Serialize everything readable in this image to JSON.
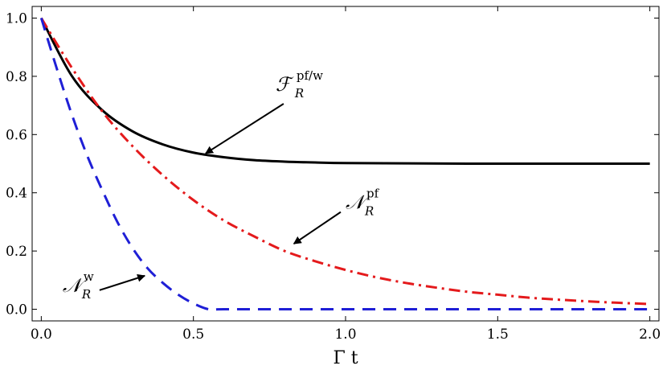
{
  "chart_data": {
    "type": "line",
    "title": "",
    "xlabel": "Γ t",
    "ylabel": "",
    "xlim": [
      -0.03,
      2.03
    ],
    "ylim": [
      -0.04,
      1.04
    ],
    "xticks": [
      0.0,
      0.5,
      1.0,
      1.5,
      2.0
    ],
    "xtick_labels": [
      "0.0",
      "0.5",
      "1.0",
      "1.5",
      "2.0"
    ],
    "yticks": [
      0.0,
      0.2,
      0.4,
      0.6,
      0.8,
      1.0
    ],
    "ytick_labels": [
      "0.0",
      "0.2",
      "0.4",
      "0.6",
      "0.8",
      "1.0"
    ],
    "grid": false,
    "legend": "none",
    "series": [
      {
        "name": "",
        "color": "#000000",
        "dash": "solid",
        "x": [
          0.0,
          0.1,
          0.2,
          0.3,
          0.4,
          0.5,
          0.6,
          0.7,
          0.8,
          0.9,
          1.0,
          1.2,
          1.4,
          1.6,
          1.8,
          2.0
        ],
        "y": [
          1.0,
          0.802,
          0.684,
          0.611,
          0.566,
          0.538,
          0.522,
          0.512,
          0.507,
          0.504,
          0.502,
          0.501,
          0.5,
          0.5,
          0.5,
          0.5
        ]
      },
      {
        "name": "",
        "color": "#e41a1c",
        "dash": "dashdot",
        "x": [
          0.0,
          0.1,
          0.2,
          0.3,
          0.4,
          0.5,
          0.6,
          0.7,
          0.8,
          0.9,
          1.0,
          1.1,
          1.2,
          1.3,
          1.4,
          1.5,
          1.6,
          1.7,
          1.8,
          1.9,
          2.0
        ],
        "y": [
          1.0,
          0.83,
          0.68,
          0.56,
          0.46,
          0.375,
          0.305,
          0.25,
          0.2,
          0.165,
          0.135,
          0.11,
          0.09,
          0.074,
          0.06,
          0.05,
          0.04,
          0.033,
          0.027,
          0.022,
          0.018
        ]
      },
      {
        "name": "",
        "color": "#1f1fd6",
        "dash": "dashed",
        "x": [
          0.0,
          0.05,
          0.1,
          0.15,
          0.2,
          0.25,
          0.3,
          0.35,
          0.4,
          0.45,
          0.5,
          0.55,
          0.6,
          0.8,
          1.0,
          1.2,
          1.4,
          1.6,
          1.8,
          2.0
        ],
        "y": [
          1.0,
          0.83,
          0.67,
          0.53,
          0.41,
          0.3,
          0.21,
          0.14,
          0.09,
          0.05,
          0.02,
          0.0,
          0.0,
          0.0,
          0.0,
          0.0,
          0.0,
          0.0,
          0.0,
          0.0
        ]
      }
    ],
    "annotations": [
      {
        "main": "ℱ",
        "sub": "R",
        "sup": "pf/w",
        "x": 0.77,
        "y": 0.75,
        "arrow_to": [
          0.54,
          0.535
        ]
      },
      {
        "main": "𝒩",
        "sub": "R",
        "sup": "pf",
        "x": 1.0,
        "y": 0.345,
        "arrow_to": [
          0.83,
          0.225
        ]
      },
      {
        "main": "𝒩",
        "sub": "R",
        "sup": "w",
        "x": 0.07,
        "y": 0.06,
        "arrow_to": [
          0.34,
          0.115
        ]
      }
    ]
  }
}
